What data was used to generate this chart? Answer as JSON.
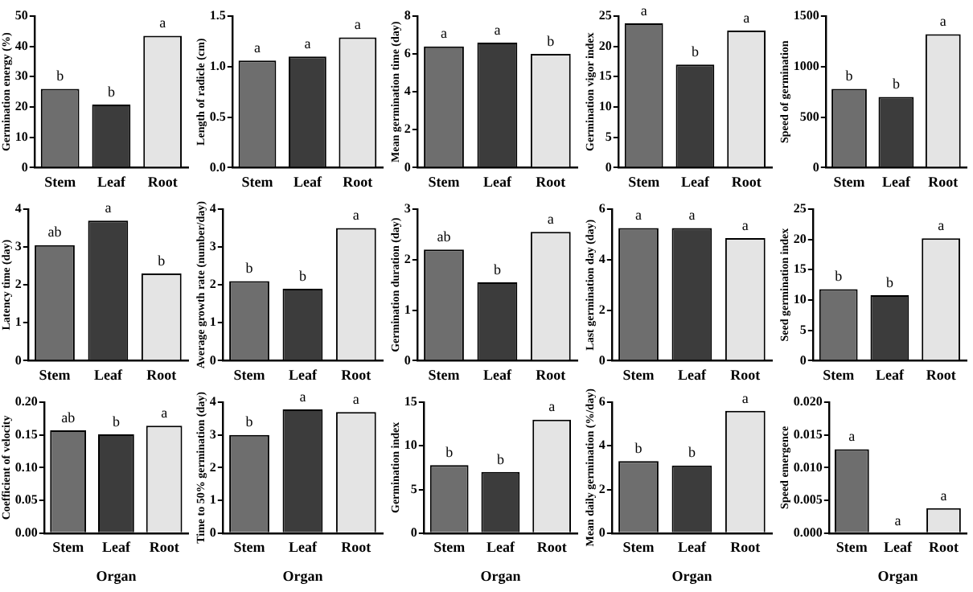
{
  "chart_data": [
    {
      "type": "bar",
      "ylabel": "Germination energy (%)",
      "categories": [
        "Stem",
        "Leaf",
        "Root"
      ],
      "values": [
        26,
        20.8,
        43.5
      ],
      "colors": [
        "#6e6e6e",
        "#3c3c3c",
        "#e4e4e4"
      ],
      "value_labels": [
        "b",
        "b",
        "a"
      ],
      "ylim": [
        0,
        50
      ],
      "yticks": [
        0,
        10,
        20,
        30,
        40,
        50
      ]
    },
    {
      "type": "bar",
      "ylabel": "Length of radicle (cm)",
      "categories": [
        "Stem",
        "Leaf",
        "Root"
      ],
      "values": [
        1.06,
        1.1,
        1.29
      ],
      "colors": [
        "#6e6e6e",
        "#3c3c3c",
        "#e4e4e4"
      ],
      "value_labels": [
        "a",
        "a",
        "a"
      ],
      "ylim": [
        0,
        1.5
      ],
      "yticks": [
        {
          "value": 0,
          "label": "0.0"
        },
        {
          "value": 0.5,
          "label": "0.5"
        },
        {
          "value": 1,
          "label": "1.0"
        },
        {
          "value": 1.5,
          "label": "1.5"
        }
      ]
    },
    {
      "type": "bar",
      "ylabel": "Mean germination time (day)",
      "categories": [
        "Stem",
        "Leaf",
        "Root"
      ],
      "values": [
        6.4,
        6.6,
        6.0
      ],
      "colors": [
        "#6e6e6e",
        "#3c3c3c",
        "#e4e4e4"
      ],
      "value_labels": [
        "a",
        "a",
        "b"
      ],
      "ylim": [
        0,
        8
      ],
      "yticks": [
        0,
        2,
        4,
        6,
        8
      ]
    },
    {
      "type": "bar",
      "ylabel": "Germination vigor index",
      "categories": [
        "Stem",
        "Leaf",
        "Root"
      ],
      "values": [
        23.8,
        17,
        22.6
      ],
      "colors": [
        "#6e6e6e",
        "#3c3c3c",
        "#e4e4e4"
      ],
      "value_labels": [
        "a",
        "b",
        "a"
      ],
      "ylim": [
        0,
        25
      ],
      "yticks": [
        0,
        5,
        10,
        15,
        20,
        25
      ]
    },
    {
      "type": "bar",
      "ylabel": "Speed of germination",
      "categories": [
        "Stem",
        "Leaf",
        "Root"
      ],
      "values": [
        780,
        700,
        1320
      ],
      "colors": [
        "#6e6e6e",
        "#3c3c3c",
        "#e4e4e4"
      ],
      "value_labels": [
        "b",
        "b",
        "a"
      ],
      "ylim": [
        0,
        1500
      ],
      "yticks": [
        0,
        500,
        1000,
        1500
      ]
    },
    {
      "type": "bar",
      "ylabel": "Latency time (day)",
      "categories": [
        "Stem",
        "Leaf",
        "Root"
      ],
      "values": [
        3.05,
        3.7,
        2.3
      ],
      "colors": [
        "#6e6e6e",
        "#3c3c3c",
        "#e4e4e4"
      ],
      "value_labels": [
        "ab",
        "a",
        "b"
      ],
      "ylim": [
        0,
        4
      ],
      "yticks": [
        0,
        1,
        2,
        3,
        4
      ]
    },
    {
      "type": "bar",
      "ylabel": "Average growth rate (number/day)",
      "categories": [
        "Stem",
        "Leaf",
        "Root"
      ],
      "values": [
        2.1,
        1.9,
        3.5
      ],
      "colors": [
        "#6e6e6e",
        "#3c3c3c",
        "#e4e4e4"
      ],
      "value_labels": [
        "b",
        "b",
        "a"
      ],
      "ylim": [
        0,
        4
      ],
      "yticks": [
        0,
        1,
        2,
        3,
        4
      ]
    },
    {
      "type": "bar",
      "ylabel": "Germination duration (day)",
      "categories": [
        "Stem",
        "Leaf",
        "Root"
      ],
      "values": [
        2.2,
        1.55,
        2.55
      ],
      "colors": [
        "#6e6e6e",
        "#3c3c3c",
        "#e4e4e4"
      ],
      "value_labels": [
        "ab",
        "b",
        "a"
      ],
      "ylim": [
        0,
        3
      ],
      "yticks": [
        0,
        1,
        2,
        3
      ]
    },
    {
      "type": "bar",
      "ylabel": "Last germination day (day)",
      "categories": [
        "Stem",
        "Leaf",
        "Root"
      ],
      "values": [
        5.25,
        5.25,
        4.85
      ],
      "colors": [
        "#6e6e6e",
        "#3c3c3c",
        "#e4e4e4"
      ],
      "value_labels": [
        "a",
        "a",
        "a"
      ],
      "ylim": [
        0,
        6
      ],
      "yticks": [
        0,
        2,
        4,
        6
      ]
    },
    {
      "type": "bar",
      "ylabel": "Seed germination index",
      "categories": [
        "Stem",
        "Leaf",
        "Root"
      ],
      "values": [
        11.8,
        10.8,
        20.2
      ],
      "colors": [
        "#6e6e6e",
        "#3c3c3c",
        "#e4e4e4"
      ],
      "value_labels": [
        "b",
        "b",
        "a"
      ],
      "ylim": [
        0,
        25
      ],
      "yticks": [
        0,
        5,
        10,
        15,
        20,
        25
      ]
    },
    {
      "type": "bar",
      "ylabel": "Coefficient of velocity",
      "xlabel": "Organ",
      "categories": [
        "Stem",
        "Leaf",
        "Root"
      ],
      "values": [
        0.157,
        0.151,
        0.164
      ],
      "colors": [
        "#6e6e6e",
        "#3c3c3c",
        "#e4e4e4"
      ],
      "value_labels": [
        "ab",
        "b",
        "a"
      ],
      "ylim": [
        0,
        0.2
      ],
      "yticks": [
        {
          "value": 0,
          "label": "0.00"
        },
        {
          "value": 0.05,
          "label": "0.05"
        },
        {
          "value": 0.1,
          "label": "0.10"
        },
        {
          "value": 0.15,
          "label": "0.15"
        },
        {
          "value": 0.2,
          "label": "0.20"
        }
      ]
    },
    {
      "type": "bar",
      "ylabel": "Time to 50% germination (day)",
      "xlabel": "Organ",
      "categories": [
        "Stem",
        "Leaf",
        "Root"
      ],
      "values": [
        3.0,
        3.78,
        3.7
      ],
      "colors": [
        "#6e6e6e",
        "#3c3c3c",
        "#e4e4e4"
      ],
      "value_labels": [
        "b",
        "a",
        "a"
      ],
      "ylim": [
        0,
        4
      ],
      "yticks": [
        0,
        1,
        2,
        3,
        4
      ]
    },
    {
      "type": "bar",
      "ylabel": "Germination index",
      "xlabel": "Organ",
      "categories": [
        "Stem",
        "Leaf",
        "Root"
      ],
      "values": [
        7.8,
        7.0,
        13.0
      ],
      "colors": [
        "#6e6e6e",
        "#3c3c3c",
        "#e4e4e4"
      ],
      "value_labels": [
        "b",
        "b",
        "a"
      ],
      "ylim": [
        0,
        15
      ],
      "yticks": [
        0,
        5,
        10,
        15
      ]
    },
    {
      "type": "bar",
      "ylabel": "Mean daily germination (%/day)",
      "xlabel": "Organ",
      "categories": [
        "Stem",
        "Leaf",
        "Root"
      ],
      "values": [
        3.3,
        3.1,
        5.6
      ],
      "colors": [
        "#6e6e6e",
        "#3c3c3c",
        "#e4e4e4"
      ],
      "value_labels": [
        "b",
        "b",
        "a"
      ],
      "ylim": [
        0,
        6
      ],
      "yticks": [
        0,
        2,
        4,
        6
      ]
    },
    {
      "type": "bar",
      "ylabel": "Speed emergence",
      "xlabel": "Organ",
      "categories": [
        "Stem",
        "Leaf",
        "Root"
      ],
      "values": [
        0.0128,
        0,
        0.0038
      ],
      "colors": [
        "#6e6e6e",
        "#3c3c3c",
        "#e4e4e4"
      ],
      "value_labels": [
        "a",
        "a",
        "a"
      ],
      "ylim": [
        0,
        0.02
      ],
      "yticks": [
        {
          "value": 0,
          "label": "0.000"
        },
        {
          "value": 0.005,
          "label": "0.005"
        },
        {
          "value": 0.01,
          "label": "0.010"
        },
        {
          "value": 0.015,
          "label": "0.015"
        },
        {
          "value": 0.02,
          "label": "0.020"
        }
      ]
    }
  ]
}
